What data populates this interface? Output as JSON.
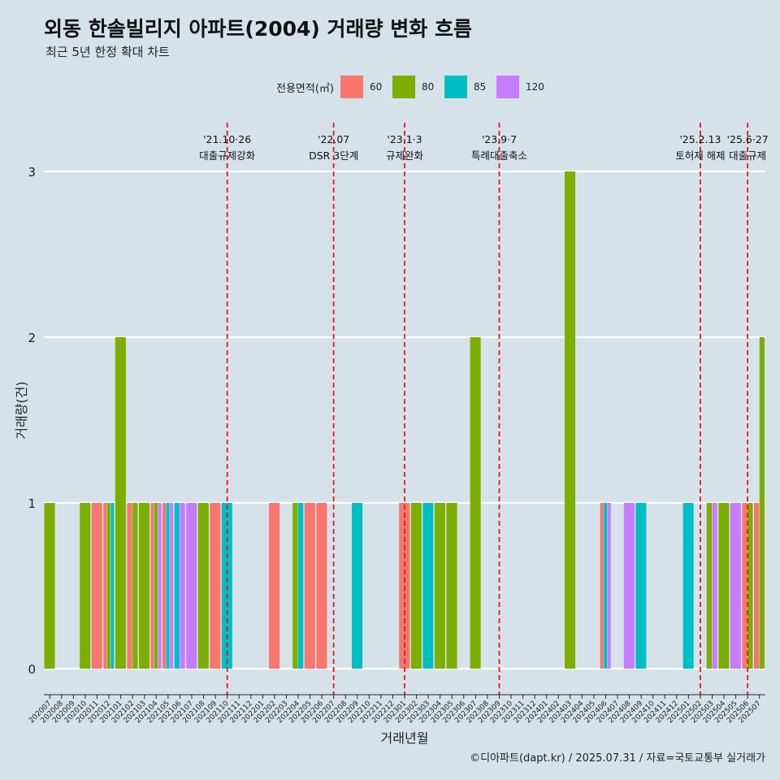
{
  "title": "외동 한솔빌리지 아파트(2004) 거래량 변화 흐름",
  "subtitle": "최근 5년 한정 확대 차트",
  "caption": "©디아파트(dapt.kr) / 2025.07.31 / 자료=국토교통부 실거래가",
  "colors": {
    "background": "#d6e2ea",
    "grid": "#ffffff",
    "event_line": "#e8141b",
    "s60": "#f8766d",
    "s80": "#7cae00",
    "s85": "#00bfc4",
    "s120": "#c77cff"
  },
  "chart_data": {
    "type": "bar",
    "title": "외동 한솔빌리지 아파트(2004) 거래량 변화 흐름",
    "subtitle": "최근 5년 한정 확대 차트",
    "xlabel": "거래년월",
    "ylabel": "거래량(건)",
    "ylim": [
      0,
      3
    ],
    "yticks": [
      0,
      1,
      2,
      3
    ],
    "grid": true,
    "legend_title": "전용면적(㎡)",
    "legend_position": "top",
    "categories": [
      "202007",
      "202008",
      "202009",
      "202010",
      "202011",
      "202012",
      "202101",
      "202102",
      "202103",
      "202104",
      "202105",
      "202106",
      "202107",
      "202108",
      "202109",
      "202110",
      "202111",
      "202112",
      "202201",
      "202202",
      "202203",
      "202204",
      "202205",
      "202206",
      "202207",
      "202208",
      "202209",
      "202210",
      "202211",
      "202212",
      "202301",
      "202302",
      "202303",
      "202304",
      "202305",
      "202306",
      "202307",
      "202308",
      "202309",
      "202310",
      "202311",
      "202312",
      "202401",
      "202402",
      "202403",
      "202404",
      "202405",
      "202406",
      "202407",
      "202408",
      "202409",
      "202410",
      "202411",
      "202412",
      "202501",
      "202502",
      "202503",
      "202504",
      "202505",
      "202506",
      "202507"
    ],
    "series": [
      {
        "name": "60",
        "color": "#f8766d",
        "values": [
          0,
          0,
          0,
          0,
          1,
          1,
          0,
          1,
          0,
          1,
          1,
          0,
          0,
          0,
          1,
          0,
          0,
          0,
          0,
          1,
          0,
          0,
          1,
          1,
          0,
          0,
          0,
          0,
          0,
          0,
          1,
          0,
          0,
          0,
          0,
          0,
          0,
          0,
          0,
          0,
          0,
          0,
          0,
          0,
          0,
          0,
          0,
          1,
          0,
          0,
          0,
          0,
          0,
          0,
          0,
          0,
          0,
          0,
          0,
          1,
          1
        ]
      },
      {
        "name": "80",
        "color": "#7cae00",
        "values": [
          1,
          0,
          0,
          1,
          0,
          1,
          2,
          1,
          1,
          1,
          0,
          0,
          0,
          1,
          0,
          0,
          0,
          0,
          0,
          0,
          0,
          1,
          0,
          0,
          0,
          0,
          0,
          0,
          0,
          0,
          0,
          1,
          0,
          1,
          1,
          0,
          2,
          0,
          0,
          0,
          0,
          0,
          0,
          0,
          3,
          0,
          0,
          0,
          0,
          0,
          0,
          0,
          0,
          0,
          0,
          0,
          1,
          1,
          0,
          1,
          2
        ]
      },
      {
        "name": "85",
        "color": "#00bfc4",
        "values": [
          0,
          0,
          0,
          0,
          0,
          1,
          0,
          0,
          0,
          0,
          1,
          1,
          0,
          0,
          0,
          1,
          0,
          0,
          0,
          0,
          0,
          1,
          0,
          0,
          0,
          0,
          1,
          0,
          0,
          0,
          0,
          0,
          1,
          0,
          0,
          0,
          0,
          0,
          0,
          0,
          0,
          0,
          0,
          0,
          0,
          0,
          0,
          1,
          0,
          0,
          1,
          0,
          0,
          0,
          1,
          0,
          0,
          0,
          0,
          0,
          0
        ]
      },
      {
        "name": "120",
        "color": "#c77cff",
        "values": [
          0,
          0,
          0,
          0,
          0,
          0,
          0,
          0,
          0,
          1,
          1,
          1,
          1,
          0,
          0,
          0,
          0,
          0,
          0,
          0,
          0,
          0,
          0,
          0,
          0,
          0,
          0,
          0,
          0,
          0,
          0,
          0,
          0,
          0,
          0,
          0,
          0,
          0,
          0,
          0,
          0,
          0,
          0,
          0,
          0,
          0,
          0,
          1,
          0,
          1,
          0,
          0,
          0,
          0,
          0,
          0,
          1,
          0,
          1,
          0,
          0
        ]
      }
    ],
    "events": [
      {
        "date": "202110",
        "line1": "'21.10·26",
        "line2": "대출규제강화"
      },
      {
        "date": "202207",
        "line1": "'22.07",
        "line2": "DSR 3단계"
      },
      {
        "date": "202301",
        "line1": "'23.1·3",
        "line2": "규제완화"
      },
      {
        "date": "202309",
        "line1": "'23.9·7",
        "line2": "특례대출축소"
      },
      {
        "date": "202502",
        "line1": "'25.2.13",
        "line2": "토허제 해제"
      },
      {
        "date": "202506",
        "line1": "'25.6·27",
        "line2": "대출규제"
      }
    ]
  }
}
